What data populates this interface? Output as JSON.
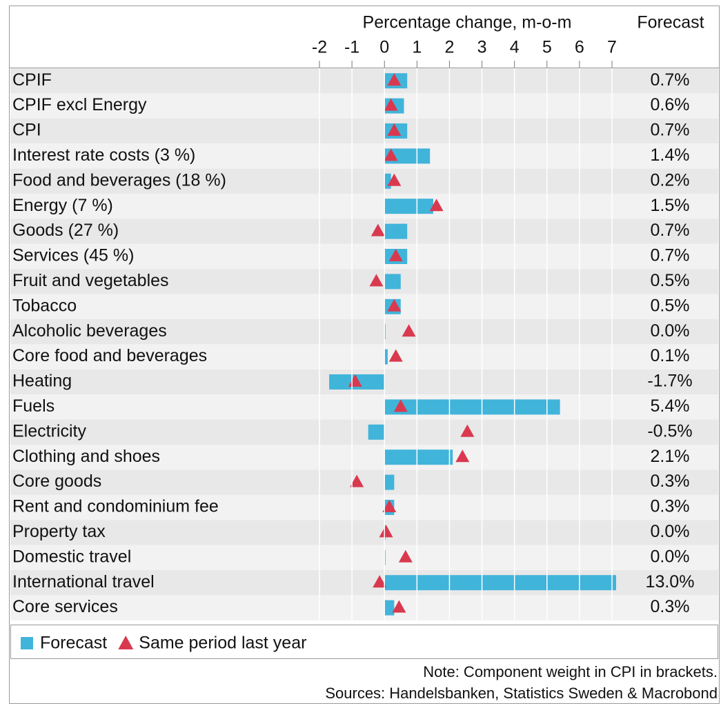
{
  "chart_data": {
    "type": "bar",
    "title": "Percentage change, m-o-m",
    "table_header": "Forecast",
    "note": "Note: Component weight in CPI in brackets.",
    "source": "Sources: Handelsbanken, Statistics Sweden & Macrobond",
    "categories": [
      "CPIF",
      "CPIF excl Energy",
      "CPI",
      "Interest rate costs (3 %)",
      "Food and beverages (18 %)",
      "Energy (7 %)",
      "Goods (27 %)",
      "Services (45 %)",
      "Fruit and vegetables",
      "Tobacco",
      "Alcoholic beverages",
      "Core food and beverages",
      "Heating",
      "Fuels",
      "Electricity",
      "Clothing and shoes",
      "Core goods",
      "Rent and condominium fee",
      "Property tax",
      "Domestic travel",
      "International travel",
      "Core services"
    ],
    "series": [
      {
        "name": "Forecast",
        "color": "#41b4da",
        "values": [
          0.7,
          0.6,
          0.7,
          1.4,
          0.2,
          1.5,
          0.7,
          0.7,
          0.5,
          0.5,
          0.0,
          0.1,
          -1.7,
          5.4,
          -0.5,
          2.1,
          0.3,
          0.3,
          0.0,
          0.0,
          13.0,
          0.3
        ],
        "value_labels": [
          "0.7%",
          "0.6%",
          "0.7%",
          "1.4%",
          "0.2%",
          "1.5%",
          "0.7%",
          "0.7%",
          "0.5%",
          "0.5%",
          "0.0%",
          "0.1%",
          "-1.7%",
          "5.4%",
          "-0.5%",
          "2.1%",
          "0.3%",
          "0.3%",
          "0.0%",
          "0.0%",
          "13.0%",
          "0.3%"
        ]
      },
      {
        "name": "Same period last year",
        "color": "#d9394f",
        "marker": "triangle",
        "values": [
          0.3,
          0.2,
          0.3,
          0.2,
          0.3,
          1.6,
          -0.2,
          0.35,
          -0.25,
          0.3,
          0.75,
          0.35,
          -0.9,
          0.5,
          2.55,
          2.4,
          -0.85,
          0.15,
          0.05,
          0.65,
          -0.15,
          0.45
        ]
      }
    ],
    "xlim": [
      -2,
      7
    ],
    "xticks": [
      -2,
      -1,
      0,
      1,
      2,
      3,
      4,
      5,
      6,
      7
    ],
    "grid": true
  }
}
